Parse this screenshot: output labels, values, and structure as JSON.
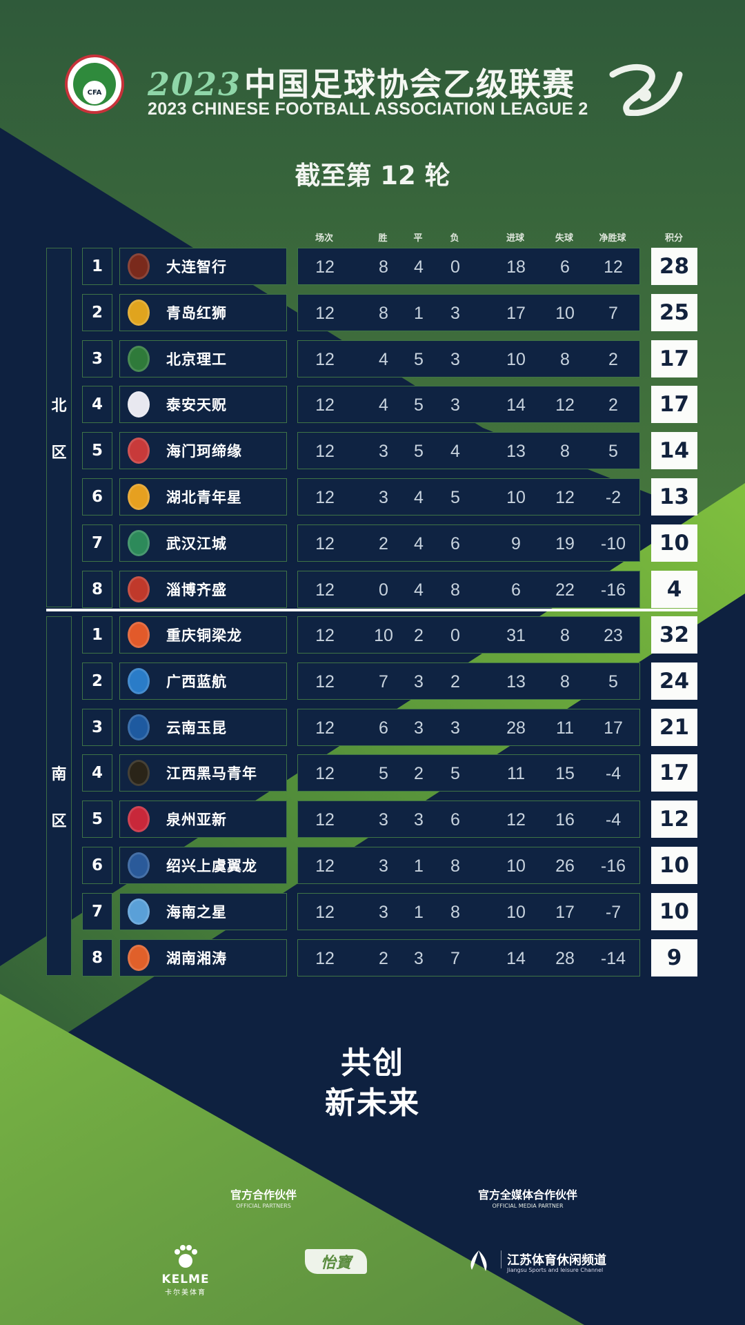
{
  "header": {
    "title_year": "2023",
    "title_cn": "中国足球协会乙级联赛",
    "title_en": "2023 CHINESE FOOTBALL ASSOCIATION LEAGUE 2",
    "cfa_logo_text": "CFA",
    "round": "截至第 12 轮"
  },
  "columns": {
    "played": "场次",
    "won": "胜",
    "drawn": "平",
    "lost": "负",
    "gf": "进球",
    "ga": "失球",
    "gd": "净胜球",
    "pts": "积分"
  },
  "colors": {
    "navy": "#0f2342",
    "green": "#3d6b3f",
    "lime": "#7dbb3d",
    "border": "#3f7446",
    "points_bg": "#fbfcfa"
  },
  "north": {
    "label": [
      "北",
      "区"
    ],
    "rows": [
      {
        "rank": "1",
        "team": "大连智行",
        "played": "12",
        "won": "8",
        "drawn": "4",
        "lost": "0",
        "gf": "18",
        "ga": "6",
        "gd": "12",
        "pts": "28",
        "logo_color": "#7a2a1c"
      },
      {
        "rank": "2",
        "team": "青岛红狮",
        "played": "12",
        "won": "8",
        "drawn": "1",
        "lost": "3",
        "gf": "17",
        "ga": "10",
        "gd": "7",
        "pts": "25",
        "logo_color": "#e0a41e"
      },
      {
        "rank": "3",
        "team": "北京理工",
        "played": "12",
        "won": "4",
        "drawn": "5",
        "lost": "3",
        "gf": "10",
        "ga": "8",
        "gd": "2",
        "pts": "17",
        "logo_color": "#2f7a3a"
      },
      {
        "rank": "4",
        "team": "泰安天贶",
        "played": "12",
        "won": "4",
        "drawn": "5",
        "lost": "3",
        "gf": "14",
        "ga": "12",
        "gd": "2",
        "pts": "17",
        "logo_color": "#e8e8f0"
      },
      {
        "rank": "5",
        "team": "海门珂缔缘",
        "played": "12",
        "won": "3",
        "drawn": "5",
        "lost": "4",
        "gf": "13",
        "ga": "8",
        "gd": "5",
        "pts": "14",
        "logo_color": "#c83a3a"
      },
      {
        "rank": "6",
        "team": "湖北青年星",
        "played": "12",
        "won": "3",
        "drawn": "4",
        "lost": "5",
        "gf": "10",
        "ga": "12",
        "gd": "-2",
        "pts": "13",
        "logo_color": "#e6a020"
      },
      {
        "rank": "7",
        "team": "武汉江城",
        "played": "12",
        "won": "2",
        "drawn": "4",
        "lost": "6",
        "gf": "9",
        "ga": "19",
        "gd": "-10",
        "pts": "10",
        "logo_color": "#2d8a5a"
      },
      {
        "rank": "8",
        "team": "淄博齐盛",
        "played": "12",
        "won": "0",
        "drawn": "4",
        "lost": "8",
        "gf": "6",
        "ga": "22",
        "gd": "-16",
        "pts": "4",
        "logo_color": "#c0392b"
      }
    ]
  },
  "south": {
    "label": [
      "南",
      "区"
    ],
    "rows": [
      {
        "rank": "1",
        "team": "重庆铜梁龙",
        "played": "12",
        "won": "10",
        "drawn": "2",
        "lost": "0",
        "gf": "31",
        "ga": "8",
        "gd": "23",
        "pts": "32",
        "logo_color": "#e25a2a"
      },
      {
        "rank": "2",
        "team": "广西蓝航",
        "played": "12",
        "won": "7",
        "drawn": "3",
        "lost": "2",
        "gf": "13",
        "ga": "8",
        "gd": "5",
        "pts": "24",
        "logo_color": "#2a7cc8"
      },
      {
        "rank": "3",
        "team": "云南玉昆",
        "played": "12",
        "won": "6",
        "drawn": "3",
        "lost": "3",
        "gf": "28",
        "ga": "11",
        "gd": "17",
        "pts": "21",
        "logo_color": "#1e5aa0"
      },
      {
        "rank": "4",
        "team": "江西黑马青年",
        "played": "12",
        "won": "5",
        "drawn": "2",
        "lost": "5",
        "gf": "11",
        "ga": "15",
        "gd": "-4",
        "pts": "17",
        "logo_color": "#2a2418"
      },
      {
        "rank": "5",
        "team": "泉州亚新",
        "played": "12",
        "won": "3",
        "drawn": "3",
        "lost": "6",
        "gf": "12",
        "ga": "16",
        "gd": "-4",
        "pts": "12",
        "logo_color": "#c8283a"
      },
      {
        "rank": "6",
        "team": "绍兴上虞翼龙",
        "played": "12",
        "won": "3",
        "drawn": "1",
        "lost": "8",
        "gf": "10",
        "ga": "26",
        "gd": "-16",
        "pts": "10",
        "logo_color": "#2a5a9a"
      },
      {
        "rank": "7",
        "team": "海南之星",
        "played": "12",
        "won": "3",
        "drawn": "1",
        "lost": "8",
        "gf": "10",
        "ga": "17",
        "gd": "-7",
        "pts": "10",
        "logo_color": "#5aa0d8"
      },
      {
        "rank": "8",
        "team": "湖南湘涛",
        "played": "12",
        "won": "2",
        "drawn": "3",
        "lost": "7",
        "gf": "14",
        "ga": "28",
        "gd": "-14",
        "pts": "9",
        "logo_color": "#e0602a"
      }
    ]
  },
  "slogan": {
    "line1": "共创",
    "line2": "新未来"
  },
  "partners": {
    "official_cn": "官方合作伙伴",
    "official_en": "OFFICIAL PARTNERS",
    "media_cn": "官方全媒体合作伙伴",
    "media_en": "OFFICIAL MEDIA PARTNER",
    "kelme": "KELME",
    "kelme_cn": "卡尔美体育",
    "yibao": "怡寶",
    "jiangsu_cn": "江苏体育休闲频道",
    "jiangsu_en": "Jiangsu Sports and leisure Channel"
  }
}
